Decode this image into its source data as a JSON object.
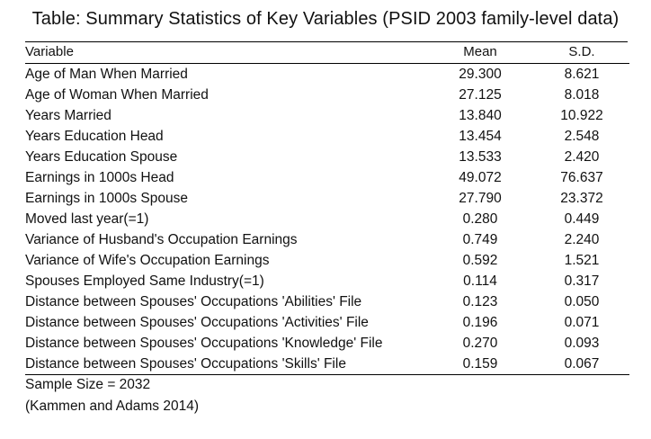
{
  "title": "Table: Summary Statistics of Key Variables (PSID 2003 family-level data)",
  "headers": {
    "variable": "Variable",
    "mean": "Mean",
    "sd": "S.D."
  },
  "rows": [
    {
      "variable": "Age of Man When Married",
      "mean": "29.300",
      "sd": "8.621"
    },
    {
      "variable": "Age of Woman When Married",
      "mean": "27.125",
      "sd": "8.018"
    },
    {
      "variable": "Years Married",
      "mean": "13.840",
      "sd": "10.922"
    },
    {
      "variable": "Years Education Head",
      "mean": "13.454",
      "sd": "2.548"
    },
    {
      "variable": "Years Education Spouse",
      "mean": "13.533",
      "sd": "2.420"
    },
    {
      "variable": "Earnings in 1000s Head",
      "mean": "49.072",
      "sd": "76.637"
    },
    {
      "variable": "Earnings in 1000s Spouse",
      "mean": "27.790",
      "sd": "23.372"
    },
    {
      "variable": "Moved last year(=1)",
      "mean": "0.280",
      "sd": "0.449"
    },
    {
      "variable": "Variance of Husband's Occupation Earnings",
      "mean": "0.749",
      "sd": "2.240"
    },
    {
      "variable": "Variance of Wife's Occupation Earnings",
      "mean": "0.592",
      "sd": "1.521"
    },
    {
      "variable": "Spouses Employed Same Industry(=1)",
      "mean": "0.114",
      "sd": "0.317"
    },
    {
      "variable": "Distance between Spouses' Occupations 'Abilities' File",
      "mean": "0.123",
      "sd": "0.050"
    },
    {
      "variable": "Distance between Spouses' Occupations 'Activities' File",
      "mean": "0.196",
      "sd": "0.071"
    },
    {
      "variable": "Distance between Spouses' Occupations 'Knowledge' File",
      "mean": "0.270",
      "sd": "0.093"
    },
    {
      "variable": "Distance between Spouses' Occupations 'Skills' File",
      "mean": "0.159",
      "sd": "0.067"
    }
  ],
  "footer": {
    "sample_size": "Sample Size = 2032",
    "citation": "(Kammen and Adams 2014)"
  }
}
